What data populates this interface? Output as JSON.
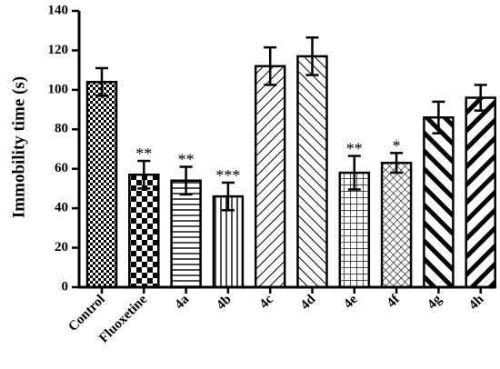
{
  "chart_data": {
    "type": "bar",
    "title": "",
    "xlabel": "",
    "ylabel": "Immobility time (s)",
    "ylim": [
      0,
      140
    ],
    "yticks": [
      0,
      20,
      40,
      60,
      80,
      100,
      120,
      140
    ],
    "grid": false,
    "legend": "none",
    "categories": [
      "Control",
      "Fluoxetine",
      "4a",
      "4b",
      "4c",
      "4d",
      "4e",
      "4f",
      "4g",
      "4h"
    ],
    "values": [
      104,
      57,
      54,
      46,
      112,
      117,
      58,
      63,
      86,
      96
    ],
    "errors": [
      7,
      7,
      7,
      7,
      9.5,
      9.5,
      8.5,
      5,
      8,
      6.5
    ],
    "significance": [
      "",
      "**",
      "**",
      "***",
      "",
      "",
      "**",
      "*",
      "",
      ""
    ],
    "patterns": [
      "checker-fine",
      "checker-coarse",
      "horizontal-lines",
      "vertical-lines",
      "diagonal-up",
      "diagonal-down",
      "grid",
      "diamond-grid",
      "diagonal-down-bold",
      "diagonal-up-bold"
    ],
    "colors": {
      "bar_stroke": "#000000",
      "axis": "#000000",
      "background": "#ffffff"
    }
  }
}
